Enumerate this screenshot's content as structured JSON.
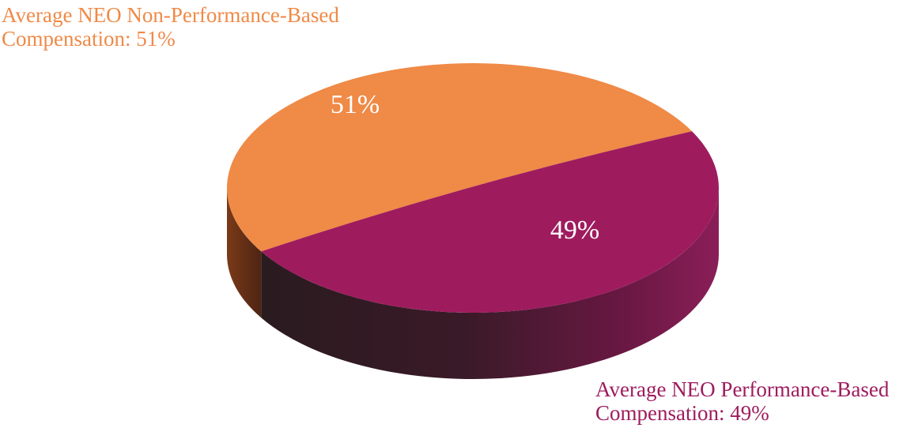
{
  "chart_data": {
    "type": "pie",
    "style": "3d",
    "slices": [
      {
        "name": "Average NEO Non-Performance-Based Compensation",
        "value": 51,
        "value_label": "51%",
        "callout_lines": [
          "Average NEO Non-Performance-Based",
          "Compensation: 51%"
        ],
        "color": "#EF8A47",
        "side_color_light": "#7A3A18",
        "side_color_dark": "#4E2413"
      },
      {
        "name": "Average NEO Performance-Based Compensation",
        "value": 49,
        "value_label": "49%",
        "callout_lines": [
          "Average NEO Performance-Based",
          "Compensation: 49%"
        ],
        "color": "#9E1C5E",
        "side_color_light": "#8A1E58",
        "side_color_dark": "#2A1B1F"
      }
    ],
    "legend": "none"
  }
}
